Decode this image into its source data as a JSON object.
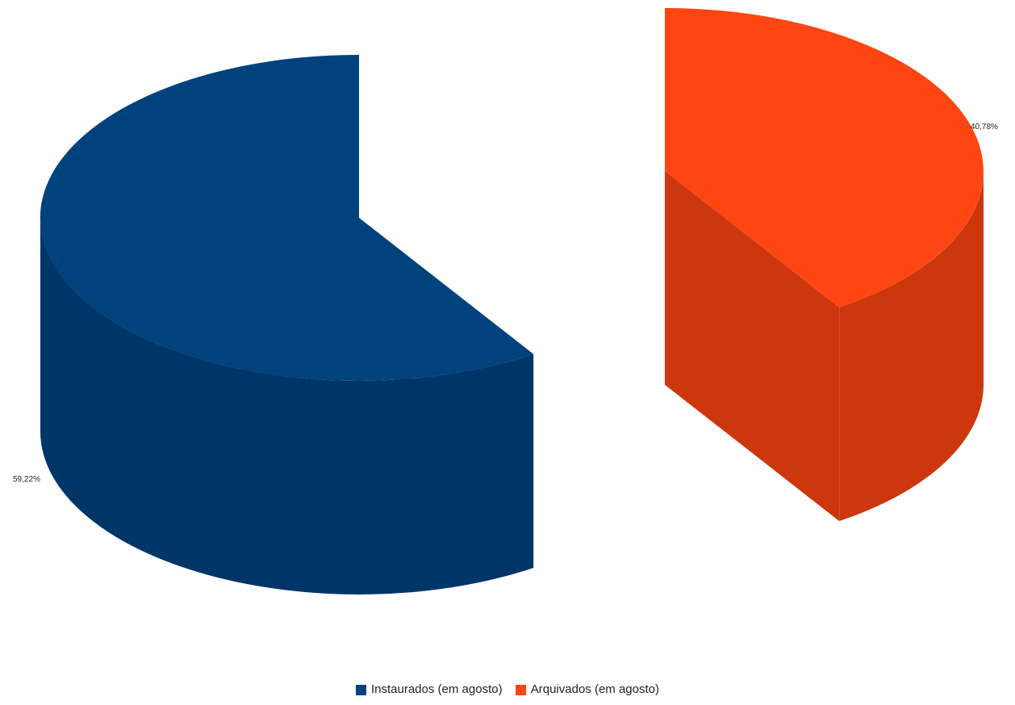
{
  "chart_data": {
    "type": "pie",
    "title": "",
    "series": [
      {
        "name": "Instaurados (em agosto)",
        "value": 59.22,
        "label": "59,22%",
        "color": "#00427e",
        "side_color": "#003568"
      },
      {
        "name": "Arquivados (em agosto)",
        "value": 40.78,
        "label": "40,78%",
        "color": "#ff4512",
        "side_color": "#cc370e"
      }
    ],
    "exploded": true,
    "three_d": true,
    "legend_position": "bottom"
  }
}
